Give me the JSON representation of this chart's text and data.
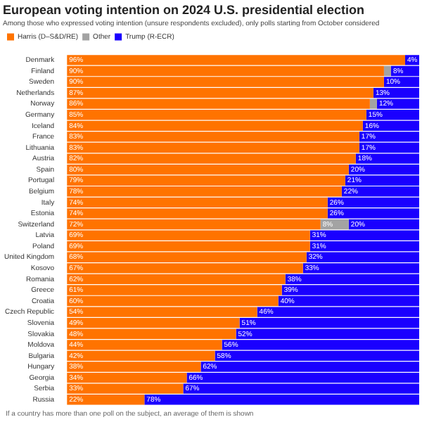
{
  "chart_data": {
    "type": "bar",
    "orientation": "horizontal",
    "stacked": true,
    "title": "European voting intention on 2024 U.S. presidential election",
    "subtitle": "Among those who expressed voting intention (unsure respondents excluded), only polls starting from October considered",
    "categories": [
      "Denmark",
      "Finland",
      "Sweden",
      "Netherlands",
      "Norway",
      "Germany",
      "Iceland",
      "France",
      "Lithuania",
      "Austria",
      "Spain",
      "Portugal",
      "Belgium",
      "Italy",
      "Estonia",
      "Switzerland",
      "Latvia",
      "Poland",
      "United Kingdom",
      "Kosovo",
      "Romania",
      "Greece",
      "Croatia",
      "Czech Republic",
      "Slovenia",
      "Slovakia",
      "Moldova",
      "Bulgaria",
      "Hungary",
      "Georgia",
      "Serbia",
      "Russia"
    ],
    "series": [
      {
        "name": "Harris (D–S&D/RE)",
        "color": "#ff7300",
        "values": [
          96,
          90,
          90,
          87,
          86,
          85,
          84,
          83,
          83,
          82,
          80,
          79,
          78,
          74,
          74,
          72,
          69,
          69,
          68,
          67,
          62,
          61,
          60,
          54,
          49,
          48,
          44,
          42,
          38,
          34,
          33,
          22
        ],
        "value_labels": [
          "96%",
          "90%",
          "90%",
          "87%",
          "86%",
          "85%",
          "84%",
          "83%",
          "83%",
          "82%",
          "80%",
          "79%",
          "78%",
          "74%",
          "74%",
          "72%",
          "69%",
          "69%",
          "68%",
          "67%",
          "62%",
          "61%",
          "60%",
          "54%",
          "49%",
          "48%",
          "44%",
          "42%",
          "38%",
          "34%",
          "33%",
          "22%"
        ]
      },
      {
        "name": "Other",
        "color": "#a3a3a3",
        "values": [
          0,
          2,
          0,
          0,
          2,
          0,
          0,
          0,
          0,
          0,
          0,
          0,
          0,
          0,
          0,
          8,
          0,
          0,
          0,
          0,
          0,
          0,
          0,
          0,
          0,
          0,
          0,
          0,
          0,
          0,
          0,
          0
        ],
        "value_labels": [
          null,
          null,
          null,
          null,
          null,
          null,
          null,
          null,
          null,
          null,
          null,
          null,
          null,
          null,
          null,
          "8%",
          null,
          null,
          null,
          null,
          null,
          null,
          null,
          null,
          null,
          null,
          null,
          null,
          null,
          null,
          null,
          null
        ]
      },
      {
        "name": "Trump (R-ECR)",
        "color": "#1a00ff",
        "values": [
          4,
          8,
          10,
          13,
          12,
          15,
          16,
          17,
          17,
          18,
          20,
          21,
          22,
          26,
          26,
          20,
          31,
          31,
          32,
          33,
          38,
          39,
          40,
          46,
          51,
          52,
          56,
          58,
          62,
          66,
          67,
          78
        ],
        "value_labels": [
          "4%",
          "8%",
          "10%",
          "13%",
          "12%",
          "15%",
          "16%",
          "17%",
          "17%",
          "18%",
          "20%",
          "21%",
          "22%",
          "26%",
          "26%",
          "20%",
          "31%",
          "31%",
          "32%",
          "33%",
          "38%",
          "39%",
          "40%",
          "46%",
          "51%",
          "52%",
          "56%",
          "58%",
          "62%",
          "66%",
          "67%",
          "78%"
        ]
      }
    ],
    "legend": "top left",
    "annotations": [
      "If a country has more than one poll on the subject, an average of them is shown"
    ]
  }
}
